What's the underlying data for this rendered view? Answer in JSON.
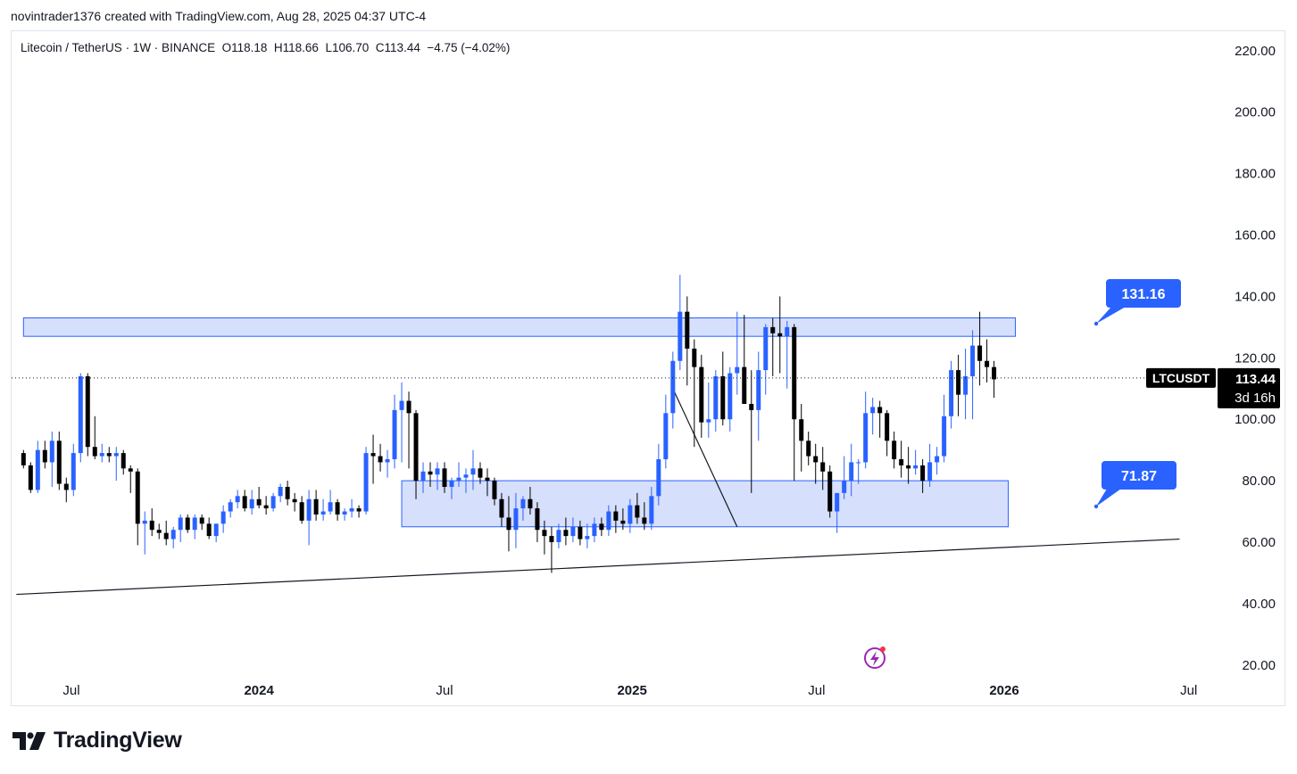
{
  "header": {
    "caption": "novintrader1376 created with TradingView.com, Aug 28, 2025 04:37 UTC-4"
  },
  "legend": {
    "symbol": "Litecoin / TetherUS · 1W · BINANCE",
    "open": "O118.18",
    "high": "H118.66",
    "low": "L106.70",
    "close": "C113.44",
    "change": "−4.75 (−4.02%)"
  },
  "price_axis": {
    "ticker": "LTCUSDT",
    "last_price": "113.44",
    "countdown": "3d 16h"
  },
  "callouts": {
    "upper": "131.16",
    "lower": "71.87"
  },
  "brand": {
    "name": "TradingView"
  },
  "colors": {
    "up": "#2962ff",
    "down": "#000000",
    "zone_fill": "#d1dcfb",
    "zone_stroke": "#2962ff",
    "callout": "#2962ff",
    "price_tag": "#000000",
    "news_icon": "#9c27b0"
  },
  "icons": {
    "news": "lightning-icon",
    "brand": "tradingview-logo-icon"
  },
  "chart_data": {
    "type": "candlestick",
    "interval": "1W",
    "exchange": "BINANCE",
    "ylim": [
      20,
      220
    ],
    "y_ticks": [
      20,
      40,
      60,
      80,
      100,
      120,
      140,
      160,
      180,
      200,
      220
    ],
    "x_ticks": [
      {
        "label": "Jul",
        "date": "2023-07"
      },
      {
        "label": "2024",
        "date": "2024-01"
      },
      {
        "label": "Jul",
        "date": "2024-07"
      },
      {
        "label": "2025",
        "date": "2025-01"
      },
      {
        "label": "Jul",
        "date": "2025-07"
      },
      {
        "label": "2026",
        "date": "2026-01"
      },
      {
        "label": "Jul",
        "date": "2026-07"
      }
    ],
    "start_week": "2023-05-15",
    "last_price": 113.44,
    "candles": [
      [
        89,
        90,
        84,
        85
      ],
      [
        85,
        86,
        76,
        77
      ],
      [
        77,
        93,
        76,
        90
      ],
      [
        90,
        93,
        84,
        86
      ],
      [
        86,
        96,
        78,
        93
      ],
      [
        93,
        96,
        77,
        79
      ],
      [
        79,
        81,
        73,
        77
      ],
      [
        77,
        92,
        75,
        89
      ],
      [
        89,
        115,
        86,
        114
      ],
      [
        114,
        115,
        88,
        91
      ],
      [
        91,
        101,
        87,
        88
      ],
      [
        88,
        92,
        86,
        89
      ],
      [
        89,
        91,
        86,
        88
      ],
      [
        88,
        91,
        80,
        89
      ],
      [
        89,
        90,
        82,
        84
      ],
      [
        84,
        85,
        76,
        83
      ],
      [
        83,
        84,
        59,
        66
      ],
      [
        66,
        70,
        56,
        67
      ],
      [
        67,
        71,
        62,
        64
      ],
      [
        64,
        66,
        61,
        63
      ],
      [
        63,
        67,
        59,
        61
      ],
      [
        61,
        65,
        58,
        64
      ],
      [
        64,
        69,
        60,
        68
      ],
      [
        68,
        69,
        63,
        64
      ],
      [
        64,
        69,
        61,
        68
      ],
      [
        68,
        69,
        64,
        66
      ],
      [
        66,
        68,
        61,
        62
      ],
      [
        62,
        66,
        60,
        66
      ],
      [
        66,
        72,
        63,
        70
      ],
      [
        70,
        74,
        68,
        73
      ],
      [
        73,
        77,
        71,
        75
      ],
      [
        75,
        77,
        70,
        71
      ],
      [
        71,
        77,
        69,
        74
      ],
      [
        74,
        78,
        71,
        72
      ],
      [
        72,
        75,
        69,
        71
      ],
      [
        71,
        76,
        70,
        75
      ],
      [
        75,
        79,
        73,
        78
      ],
      [
        78,
        80,
        72,
        74
      ],
      [
        74,
        76,
        70,
        73
      ],
      [
        73,
        75,
        66,
        67
      ],
      [
        67,
        77,
        59,
        74
      ],
      [
        74,
        77,
        67,
        69
      ],
      [
        69,
        74,
        67,
        70
      ],
      [
        70,
        77,
        69,
        73
      ],
      [
        73,
        74,
        67,
        69
      ],
      [
        69,
        71,
        67,
        70
      ],
      [
        70,
        74,
        68,
        71
      ],
      [
        71,
        72,
        68,
        70
      ],
      [
        70,
        91,
        69,
        89
      ],
      [
        89,
        95,
        79,
        88
      ],
      [
        88,
        92,
        83,
        86
      ],
      [
        86,
        90,
        81,
        87
      ],
      [
        87,
        108,
        84,
        103
      ],
      [
        103,
        112,
        86,
        106
      ],
      [
        106,
        109,
        84,
        102
      ],
      [
        102,
        103,
        74,
        80
      ],
      [
        80,
        86,
        76,
        83
      ],
      [
        83,
        86,
        78,
        82
      ],
      [
        82,
        86,
        77,
        84
      ],
      [
        84,
        86,
        76,
        78
      ],
      [
        78,
        81,
        74,
        80
      ],
      [
        80,
        86,
        78,
        81
      ],
      [
        81,
        84,
        76,
        82
      ],
      [
        82,
        90,
        77,
        84
      ],
      [
        84,
        86,
        79,
        81
      ],
      [
        81,
        84,
        75,
        80
      ],
      [
        80,
        81,
        72,
        74
      ],
      [
        74,
        76,
        65,
        68
      ],
      [
        68,
        75,
        57,
        64
      ],
      [
        64,
        76,
        58,
        71
      ],
      [
        71,
        75,
        67,
        74
      ],
      [
        74,
        78,
        69,
        71
      ],
      [
        71,
        73,
        60,
        64
      ],
      [
        64,
        67,
        56,
        62
      ],
      [
        62,
        65,
        50,
        60
      ],
      [
        60,
        66,
        58,
        64
      ],
      [
        64,
        68,
        59,
        62
      ],
      [
        62,
        68,
        60,
        65
      ],
      [
        65,
        67,
        59,
        61
      ],
      [
        61,
        66,
        58,
        62
      ],
      [
        62,
        68,
        60,
        66
      ],
      [
        66,
        68,
        62,
        64
      ],
      [
        64,
        72,
        62,
        70
      ],
      [
        70,
        72,
        63,
        67
      ],
      [
        67,
        71,
        64,
        66
      ],
      [
        66,
        74,
        63,
        72
      ],
      [
        72,
        76,
        66,
        68
      ],
      [
        68,
        73,
        64,
        66
      ],
      [
        66,
        78,
        64,
        75
      ],
      [
        75,
        92,
        72,
        87
      ],
      [
        87,
        108,
        84,
        102
      ],
      [
        102,
        122,
        97,
        119
      ],
      [
        119,
        147,
        116,
        135
      ],
      [
        135,
        140,
        111,
        123
      ],
      [
        123,
        126,
        91,
        117
      ],
      [
        117,
        121,
        94,
        99
      ],
      [
        99,
        112,
        94,
        100
      ],
      [
        100,
        116,
        96,
        114
      ],
      [
        114,
        122,
        98,
        100
      ],
      [
        100,
        117,
        96,
        115
      ],
      [
        115,
        135,
        108,
        117
      ],
      [
        117,
        134,
        107,
        105
      ],
      [
        105,
        116,
        76,
        103
      ],
      [
        103,
        122,
        93,
        116
      ],
      [
        116,
        131,
        108,
        130
      ],
      [
        130,
        133,
        114,
        128
      ],
      [
        128,
        140,
        115,
        127
      ],
      [
        127,
        132,
        110,
        130
      ],
      [
        130,
        131,
        80,
        100
      ],
      [
        100,
        105,
        83,
        93
      ],
      [
        93,
        96,
        85,
        88
      ],
      [
        88,
        92,
        79,
        86
      ],
      [
        86,
        91,
        77,
        83
      ],
      [
        83,
        85,
        68,
        70
      ],
      [
        70,
        75,
        63,
        76
      ],
      [
        76,
        88,
        74,
        80
      ],
      [
        80,
        92,
        75,
        86
      ],
      [
        86,
        87,
        79,
        86
      ],
      [
        86,
        109,
        84,
        102
      ],
      [
        102,
        107,
        95,
        104
      ],
      [
        104,
        106,
        94,
        102
      ],
      [
        102,
        103,
        88,
        93
      ],
      [
        93,
        96,
        84,
        87
      ],
      [
        87,
        93,
        81,
        85
      ],
      [
        85,
        91,
        79,
        84
      ],
      [
        84,
        90,
        82,
        85
      ],
      [
        85,
        87,
        76,
        80
      ],
      [
        80,
        92,
        78,
        86
      ],
      [
        86,
        91,
        82,
        88
      ],
      [
        88,
        108,
        86,
        101
      ],
      [
        101,
        119,
        97,
        116
      ],
      [
        116,
        121,
        101,
        108
      ],
      [
        108,
        123,
        100,
        114
      ],
      [
        114,
        129,
        100,
        124
      ],
      [
        124,
        135,
        111,
        119
      ],
      [
        119,
        126,
        112,
        117
      ],
      [
        117,
        119,
        107,
        113
      ]
    ],
    "zones": [
      {
        "from_date": "2023-05-15",
        "to_date": "2026-01-12",
        "low": 127,
        "high": 133
      },
      {
        "from_date": "2024-05-20",
        "to_date": "2026-01-05",
        "low": 65,
        "high": 80
      }
    ],
    "trendlines": [
      {
        "from": [
          "2023-05-08",
          43
        ],
        "to": [
          "2026-06-22",
          61
        ]
      },
      {
        "from": [
          "2025-02-10",
          110
        ],
        "to": [
          "2025-04-14",
          65
        ]
      }
    ],
    "callouts": [
      {
        "label": "131.16",
        "value": 131.16
      },
      {
        "label": "71.87",
        "value": 71.87
      }
    ]
  }
}
